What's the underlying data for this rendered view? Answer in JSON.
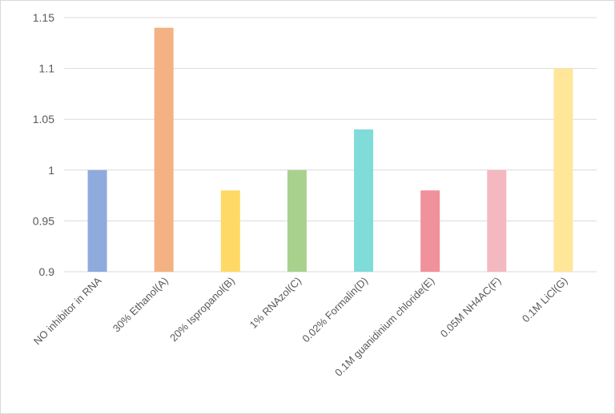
{
  "chart_data": {
    "type": "bar",
    "categories": [
      "NO inhibitor in RNA",
      "30% Ethanol(A)",
      "20% Ispropanol(B)",
      "1% RNAzol(C)",
      "0.02% Formalin(D)",
      "0.1M guanidinium chloride(E)",
      "0.05M NH4AC(F)",
      "0.1M LiCl(G)"
    ],
    "values": [
      1.0,
      1.14,
      0.98,
      1.0,
      1.04,
      0.98,
      1.0,
      1.1
    ],
    "colors": [
      "#8faadc",
      "#f4b183",
      "#ffd966",
      "#a9d18e",
      "#7fdcd8",
      "#f0919c",
      "#f4b8c1",
      "#ffe699"
    ],
    "ylim": [
      0.9,
      1.15
    ],
    "yticks": [
      0.9,
      0.95,
      1.0,
      1.05,
      1.1,
      1.15
    ],
    "ytick_labels": [
      "0.9",
      "0.95",
      "1",
      "1.05",
      "1.1",
      "1.15"
    ],
    "grid": true,
    "gridline_color": "#d9d9d9",
    "title": "",
    "xlabel": "",
    "ylabel": ""
  }
}
